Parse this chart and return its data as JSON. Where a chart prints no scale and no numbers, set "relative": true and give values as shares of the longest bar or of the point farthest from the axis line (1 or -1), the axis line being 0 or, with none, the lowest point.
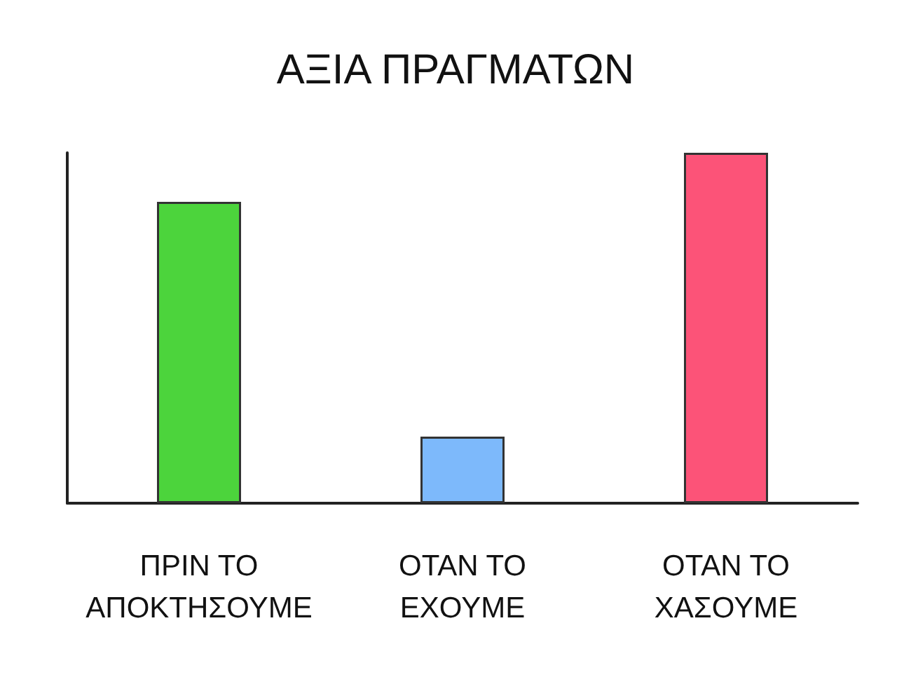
{
  "chart_data": {
    "type": "bar",
    "title": "ΑΞΙΑ ΠΡΑΓΜΑΤΩΝ",
    "categories": [
      "ΠΡΙΝ ΤΟ\nΑΠΟΚΤΗΣΟΥΜΕ",
      "ΟΤΑΝ ΤΟ\nΕΧΟΥΜΕ",
      "ΟΤΑΝ ΤΟ\nΧΑΣΟΥΜΕ"
    ],
    "values": [
      0.86,
      0.19,
      1
    ],
    "colors": [
      "#4cd43c",
      "#7db9fb",
      "#fc5378"
    ],
    "relative": true
  }
}
